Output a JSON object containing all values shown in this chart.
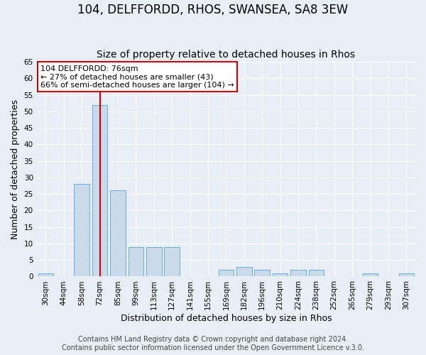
{
  "title": "104, DELFFORDD, RHOS, SWANSEA, SA8 3EW",
  "subtitle": "Size of property relative to detached houses in Rhos",
  "xlabel": "Distribution of detached houses by size in Rhos",
  "ylabel": "Number of detached properties",
  "bin_labels": [
    "30sqm",
    "44sqm",
    "58sqm",
    "72sqm",
    "85sqm",
    "99sqm",
    "113sqm",
    "127sqm",
    "141sqm",
    "155sqm",
    "169sqm",
    "182sqm",
    "196sqm",
    "210sqm",
    "224sqm",
    "238sqm",
    "252sqm",
    "265sqm",
    "279sqm",
    "293sqm",
    "307sqm"
  ],
  "bar_heights": [
    1,
    0,
    28,
    52,
    26,
    9,
    9,
    9,
    0,
    0,
    2,
    3,
    2,
    1,
    2,
    2,
    0,
    0,
    1,
    0,
    1
  ],
  "bar_color": "#c9daea",
  "bar_edge_color": "#6aadd5",
  "vline_bin": 3,
  "vline_color": "#cc0000",
  "annotation_title": "104 DELFFORDD: 76sqm",
  "annotation_line1": "← 27% of detached houses are smaller (43)",
  "annotation_line2": "66% of semi-detached houses are larger (104) →",
  "annotation_box_facecolor": "#ffffff",
  "annotation_box_edgecolor": "#cc0000",
  "ylim": [
    0,
    65
  ],
  "yticks": [
    0,
    5,
    10,
    15,
    20,
    25,
    30,
    35,
    40,
    45,
    50,
    55,
    60,
    65
  ],
  "footer1": "Contains HM Land Registry data © Crown copyright and database right 2024.",
  "footer2": "Contains public sector information licensed under the Open Government Licence v.3.0.",
  "background_color": "#e8eef5",
  "grid_color": "#ffffff",
  "title_fontsize": 12,
  "subtitle_fontsize": 10,
  "axis_label_fontsize": 9,
  "tick_fontsize": 7.5,
  "annotation_fontsize": 8,
  "footer_fontsize": 7
}
